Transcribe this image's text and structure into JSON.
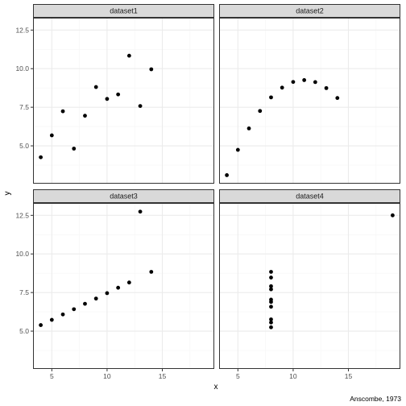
{
  "chart_data": {
    "type": "scatter",
    "facet_titles": [
      "dataset1",
      "dataset2",
      "dataset3",
      "dataset4"
    ],
    "xlabel": "x",
    "ylabel": "y",
    "caption": "Anscombe, 1973",
    "xlim": [
      3.3,
      19.7
    ],
    "ylim": [
      2.55,
      13.3
    ],
    "x_ticks": [
      5,
      10,
      15
    ],
    "x_tick_labels": [
      "5",
      "10",
      "15"
    ],
    "y_ticks": [
      5.0,
      7.5,
      10.0,
      12.5
    ],
    "y_tick_labels": [
      "5.0",
      "7.5",
      "10.0",
      "12.5"
    ],
    "grid": true,
    "panels": [
      {
        "name": "dataset1",
        "points": [
          {
            "x": 10,
            "y": 8.04
          },
          {
            "x": 8,
            "y": 6.95
          },
          {
            "x": 13,
            "y": 7.58
          },
          {
            "x": 9,
            "y": 8.81
          },
          {
            "x": 11,
            "y": 8.33
          },
          {
            "x": 14,
            "y": 9.96
          },
          {
            "x": 6,
            "y": 7.24
          },
          {
            "x": 4,
            "y": 4.26
          },
          {
            "x": 12,
            "y": 10.84
          },
          {
            "x": 7,
            "y": 4.82
          },
          {
            "x": 5,
            "y": 5.68
          }
        ]
      },
      {
        "name": "dataset2",
        "points": [
          {
            "x": 10,
            "y": 9.14
          },
          {
            "x": 8,
            "y": 8.14
          },
          {
            "x": 13,
            "y": 8.74
          },
          {
            "x": 9,
            "y": 8.77
          },
          {
            "x": 11,
            "y": 9.26
          },
          {
            "x": 14,
            "y": 8.1
          },
          {
            "x": 6,
            "y": 6.13
          },
          {
            "x": 4,
            "y": 3.1
          },
          {
            "x": 12,
            "y": 9.13
          },
          {
            "x": 7,
            "y": 7.26
          },
          {
            "x": 5,
            "y": 4.74
          }
        ]
      },
      {
        "name": "dataset3",
        "points": [
          {
            "x": 10,
            "y": 7.46
          },
          {
            "x": 8,
            "y": 6.77
          },
          {
            "x": 13,
            "y": 12.74
          },
          {
            "x": 9,
            "y": 7.11
          },
          {
            "x": 11,
            "y": 7.81
          },
          {
            "x": 14,
            "y": 8.84
          },
          {
            "x": 6,
            "y": 6.08
          },
          {
            "x": 4,
            "y": 5.39
          },
          {
            "x": 12,
            "y": 8.15
          },
          {
            "x": 7,
            "y": 6.42
          },
          {
            "x": 5,
            "y": 5.73
          }
        ]
      },
      {
        "name": "dataset4",
        "points": [
          {
            "x": 8,
            "y": 6.58
          },
          {
            "x": 8,
            "y": 5.76
          },
          {
            "x": 8,
            "y": 7.71
          },
          {
            "x": 8,
            "y": 8.84
          },
          {
            "x": 8,
            "y": 8.47
          },
          {
            "x": 8,
            "y": 7.04
          },
          {
            "x": 8,
            "y": 5.25
          },
          {
            "x": 19,
            "y": 12.5
          },
          {
            "x": 8,
            "y": 5.56
          },
          {
            "x": 8,
            "y": 7.91
          },
          {
            "x": 8,
            "y": 6.89
          }
        ]
      }
    ],
    "colors": {
      "panel_background": "#ffffff",
      "panel_border": "#333333",
      "strip_fill": "#d9d9d9",
      "grid_major": "#ebebeb",
      "grid_minor": "#f5f5f5",
      "point": "#000000"
    }
  }
}
